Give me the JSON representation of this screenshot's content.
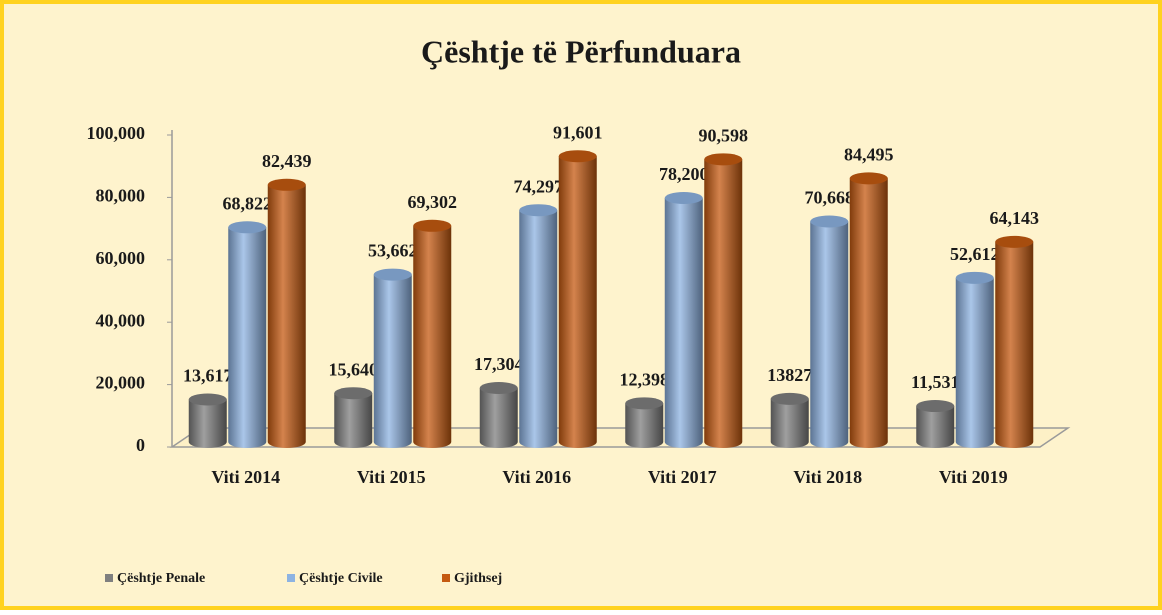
{
  "chart_data": {
    "type": "bar",
    "title": "Çështje të Përfunduara",
    "categories": [
      "Viti 2014",
      "Viti 2015",
      "Viti 2016",
      "Viti 2017",
      "Viti 2018",
      "Viti 2019"
    ],
    "series": [
      {
        "name": "Çështje Penale",
        "color": "#7f7f7f",
        "values": [
          13617,
          15640,
          17304,
          12398,
          13827,
          11531
        ],
        "value_labels": [
          "13,617",
          "15,640",
          "17,304",
          "12,398",
          "13827",
          "11,531"
        ]
      },
      {
        "name": "Çështje Civile",
        "color": "#8db3e2",
        "values": [
          68822,
          53662,
          74297,
          78200,
          70668,
          52612
        ],
        "value_labels": [
          "68,822",
          "53,662",
          "74,297",
          "78,200",
          "70,668",
          "52,612"
        ]
      },
      {
        "name": "Gjithsej",
        "color": "#c55a11",
        "values": [
          82439,
          69302,
          91601,
          90598,
          84495,
          64143
        ],
        "value_labels": [
          "82,439",
          "69,302",
          "91,601",
          "90,598",
          "84,495",
          "64,143"
        ]
      }
    ],
    "ylim": [
      0,
      100000
    ],
    "yticks": [
      0,
      {
        "value": 20000,
        "label": "20,000"
      },
      {
        "value": 40000,
        "label": "40,000"
      },
      {
        "value": 60000,
        "label": "60,000"
      },
      {
        "value": 80000,
        "label": "80,000"
      },
      {
        "value": 100000,
        "label": "100,000"
      }
    ],
    "legend": "bottom-left"
  }
}
